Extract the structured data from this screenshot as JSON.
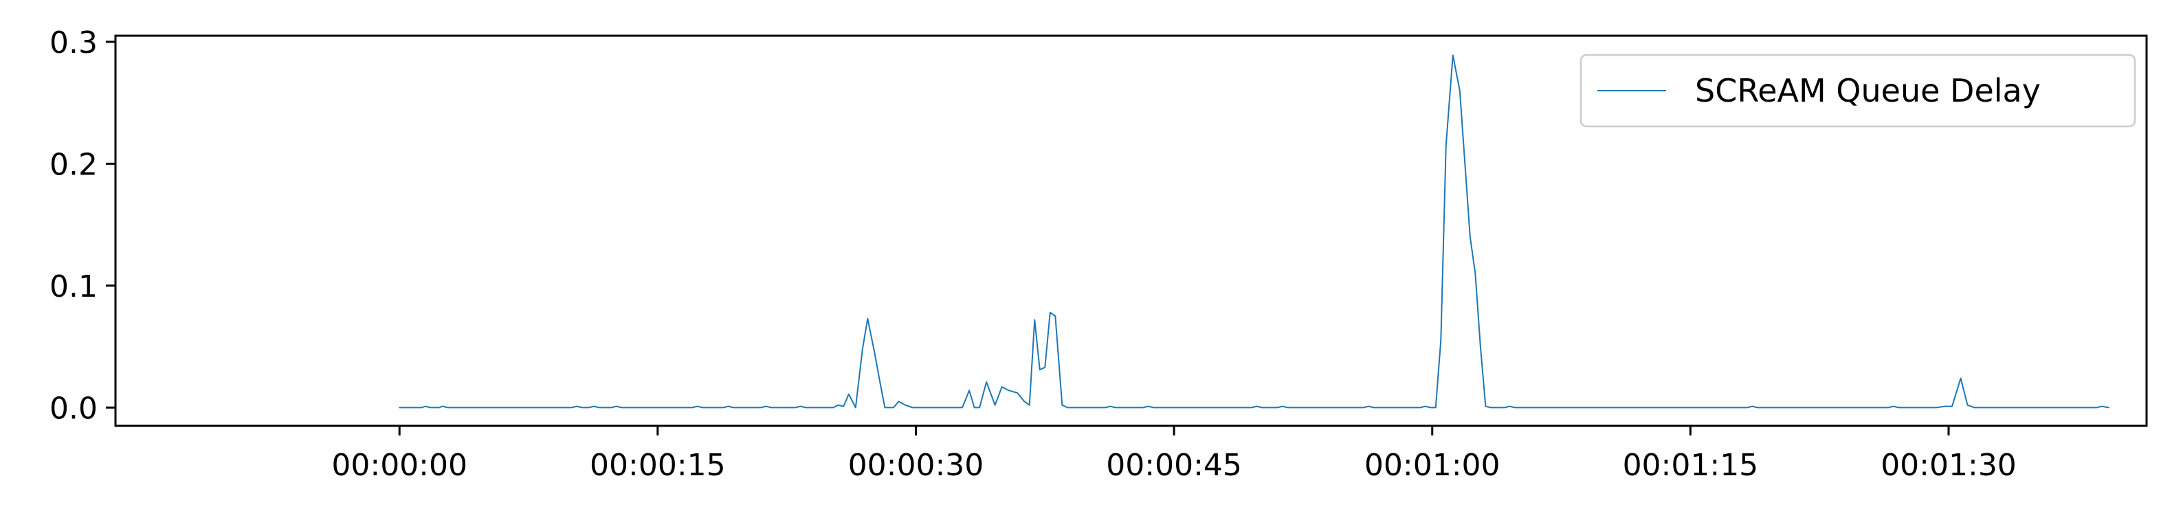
{
  "chart_data": {
    "type": "line",
    "title": "",
    "xlabel": "",
    "ylabel": "",
    "x_unit": "seconds",
    "xlim": [
      -16.5,
      101.5
    ],
    "ylim": [
      -0.015,
      0.305
    ],
    "x_ticks": [
      {
        "value": 0,
        "label": "00:00:00"
      },
      {
        "value": 15,
        "label": "00:00:15"
      },
      {
        "value": 30,
        "label": "00:00:30"
      },
      {
        "value": 45,
        "label": "00:00:45"
      },
      {
        "value": 60,
        "label": "00:01:00"
      },
      {
        "value": 75,
        "label": "00:01:15"
      },
      {
        "value": 90,
        "label": "00:01:30"
      }
    ],
    "y_ticks": [
      {
        "value": 0.0,
        "label": "0.0"
      },
      {
        "value": 0.1,
        "label": "0.1"
      },
      {
        "value": 0.2,
        "label": "0.2"
      },
      {
        "value": 0.3,
        "label": "0.3"
      }
    ],
    "grid": false,
    "legend": {
      "position": "top-right"
    },
    "series": [
      {
        "name": "SCReAM Queue Delay",
        "color": "#1f77b4",
        "points": [
          [
            0,
            0.0
          ],
          [
            1.3,
            0.0
          ],
          [
            1.5,
            0.001
          ],
          [
            1.8,
            0.0
          ],
          [
            2.3,
            0.0
          ],
          [
            2.5,
            0.001
          ],
          [
            2.8,
            0.0
          ],
          [
            10.0,
            0.0
          ],
          [
            10.3,
            0.001
          ],
          [
            10.6,
            0.0
          ],
          [
            11.0,
            0.0
          ],
          [
            11.3,
            0.001
          ],
          [
            11.6,
            0.0
          ],
          [
            12.3,
            0.0
          ],
          [
            12.6,
            0.001
          ],
          [
            12.9,
            0.0
          ],
          [
            17.0,
            0.0
          ],
          [
            17.3,
            0.001
          ],
          [
            17.6,
            0.0
          ],
          [
            18.8,
            0.0
          ],
          [
            19.1,
            0.001
          ],
          [
            19.4,
            0.0
          ],
          [
            21.0,
            0.0
          ],
          [
            21.3,
            0.001
          ],
          [
            21.6,
            0.0
          ],
          [
            23.0,
            0.0
          ],
          [
            23.3,
            0.001
          ],
          [
            23.6,
            0.0
          ],
          [
            25.2,
            0.0
          ],
          [
            25.5,
            0.002
          ],
          [
            25.8,
            0.001
          ],
          [
            26.1,
            0.011
          ],
          [
            26.5,
            0.0
          ],
          [
            26.9,
            0.048
          ],
          [
            27.2,
            0.073
          ],
          [
            27.6,
            0.045
          ],
          [
            27.9,
            0.022
          ],
          [
            28.2,
            0.0
          ],
          [
            28.7,
            0.0
          ],
          [
            29.0,
            0.005
          ],
          [
            29.4,
            0.002
          ],
          [
            29.8,
            0.0
          ],
          [
            32.0,
            0.0
          ],
          [
            32.7,
            0.0
          ],
          [
            33.1,
            0.014
          ],
          [
            33.4,
            0.0
          ],
          [
            33.7,
            0.0
          ],
          [
            34.1,
            0.021
          ],
          [
            34.6,
            0.002
          ],
          [
            35.0,
            0.017
          ],
          [
            35.4,
            0.014
          ],
          [
            35.9,
            0.012
          ],
          [
            36.3,
            0.005
          ],
          [
            36.6,
            0.002
          ],
          [
            36.9,
            0.072
          ],
          [
            37.2,
            0.031
          ],
          [
            37.5,
            0.033
          ],
          [
            37.8,
            0.078
          ],
          [
            38.1,
            0.075
          ],
          [
            38.5,
            0.002
          ],
          [
            38.8,
            0.0
          ],
          [
            41.0,
            0.0
          ],
          [
            41.3,
            0.001
          ],
          [
            41.6,
            0.0
          ],
          [
            43.2,
            0.0
          ],
          [
            43.5,
            0.001
          ],
          [
            43.8,
            0.0
          ],
          [
            49.5,
            0.0
          ],
          [
            49.8,
            0.001
          ],
          [
            50.1,
            0.0
          ],
          [
            51.0,
            0.0
          ],
          [
            51.3,
            0.001
          ],
          [
            51.6,
            0.0
          ],
          [
            56.0,
            0.0
          ],
          [
            56.3,
            0.001
          ],
          [
            56.6,
            0.0
          ],
          [
            59.3,
            0.0
          ],
          [
            59.6,
            0.001
          ],
          [
            59.9,
            0.0
          ],
          [
            60.2,
            0.0
          ],
          [
            60.5,
            0.055
          ],
          [
            60.8,
            0.215
          ],
          [
            61.2,
            0.289
          ],
          [
            61.6,
            0.26
          ],
          [
            61.9,
            0.2
          ],
          [
            62.2,
            0.14
          ],
          [
            62.5,
            0.11
          ],
          [
            62.8,
            0.05
          ],
          [
            63.1,
            0.001
          ],
          [
            63.4,
            0.0
          ],
          [
            64.2,
            0.0
          ],
          [
            64.5,
            0.001
          ],
          [
            64.8,
            0.0
          ],
          [
            78.3,
            0.0
          ],
          [
            78.6,
            0.001
          ],
          [
            78.9,
            0.0
          ],
          [
            86.5,
            0.0
          ],
          [
            86.8,
            0.001
          ],
          [
            87.1,
            0.0
          ],
          [
            89.3,
            0.0
          ],
          [
            89.8,
            0.001
          ],
          [
            90.2,
            0.001
          ],
          [
            90.7,
            0.024
          ],
          [
            91.1,
            0.002
          ],
          [
            91.5,
            0.0
          ],
          [
            98.6,
            0.0
          ],
          [
            98.9,
            0.001
          ],
          [
            99.3,
            0.0
          ]
        ]
      }
    ]
  }
}
